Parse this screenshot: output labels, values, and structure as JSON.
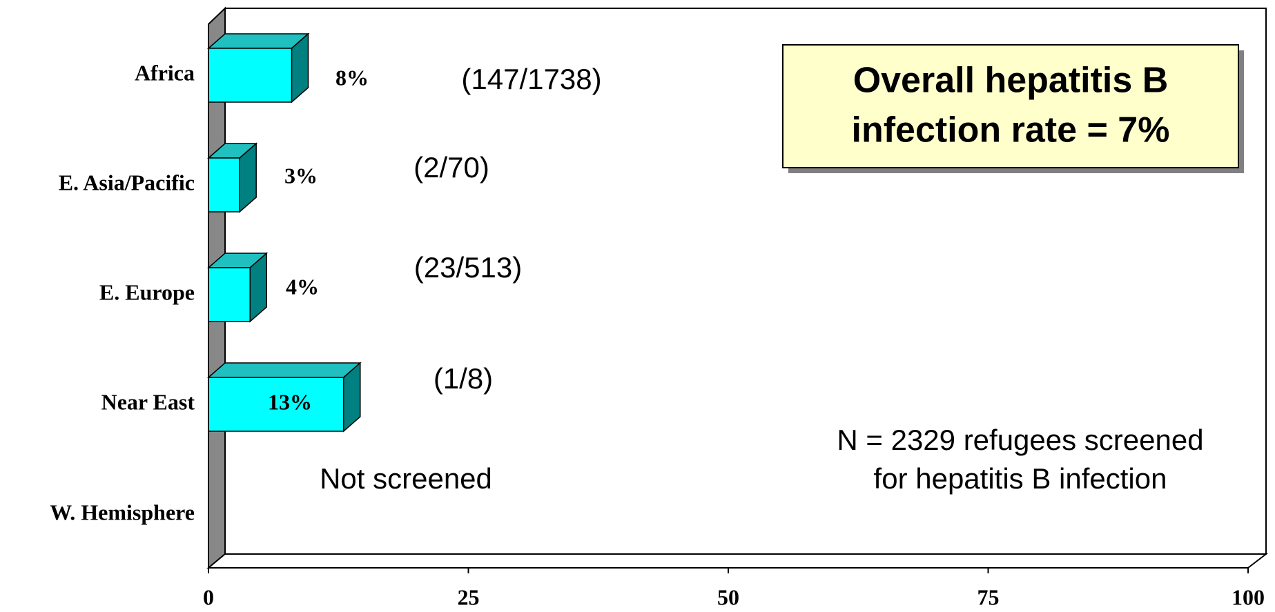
{
  "chart_data": {
    "type": "bar3d_horizontal",
    "categories": [
      "Africa",
      "E. Asia/Pacific",
      "E. Europe",
      "Near East",
      "W. Hemisphere"
    ],
    "values": [
      8,
      3,
      4,
      13,
      null
    ],
    "value_labels": [
      "8%",
      "3%",
      "4%",
      "13%",
      null
    ],
    "ratio_labels": [
      "(147/1738)",
      "(2/70)",
      "(23/513)",
      "(1/8)",
      "Not screened"
    ],
    "color": "#00ffff",
    "xlim": [
      0,
      100
    ],
    "xticks": [
      0,
      25,
      50,
      75,
      100
    ],
    "callout": [
      "Overall hepatitis B",
      "infection rate = 7%"
    ],
    "note": [
      "N = 2329 refugees screened",
      "for hepatitis B infection"
    ]
  }
}
